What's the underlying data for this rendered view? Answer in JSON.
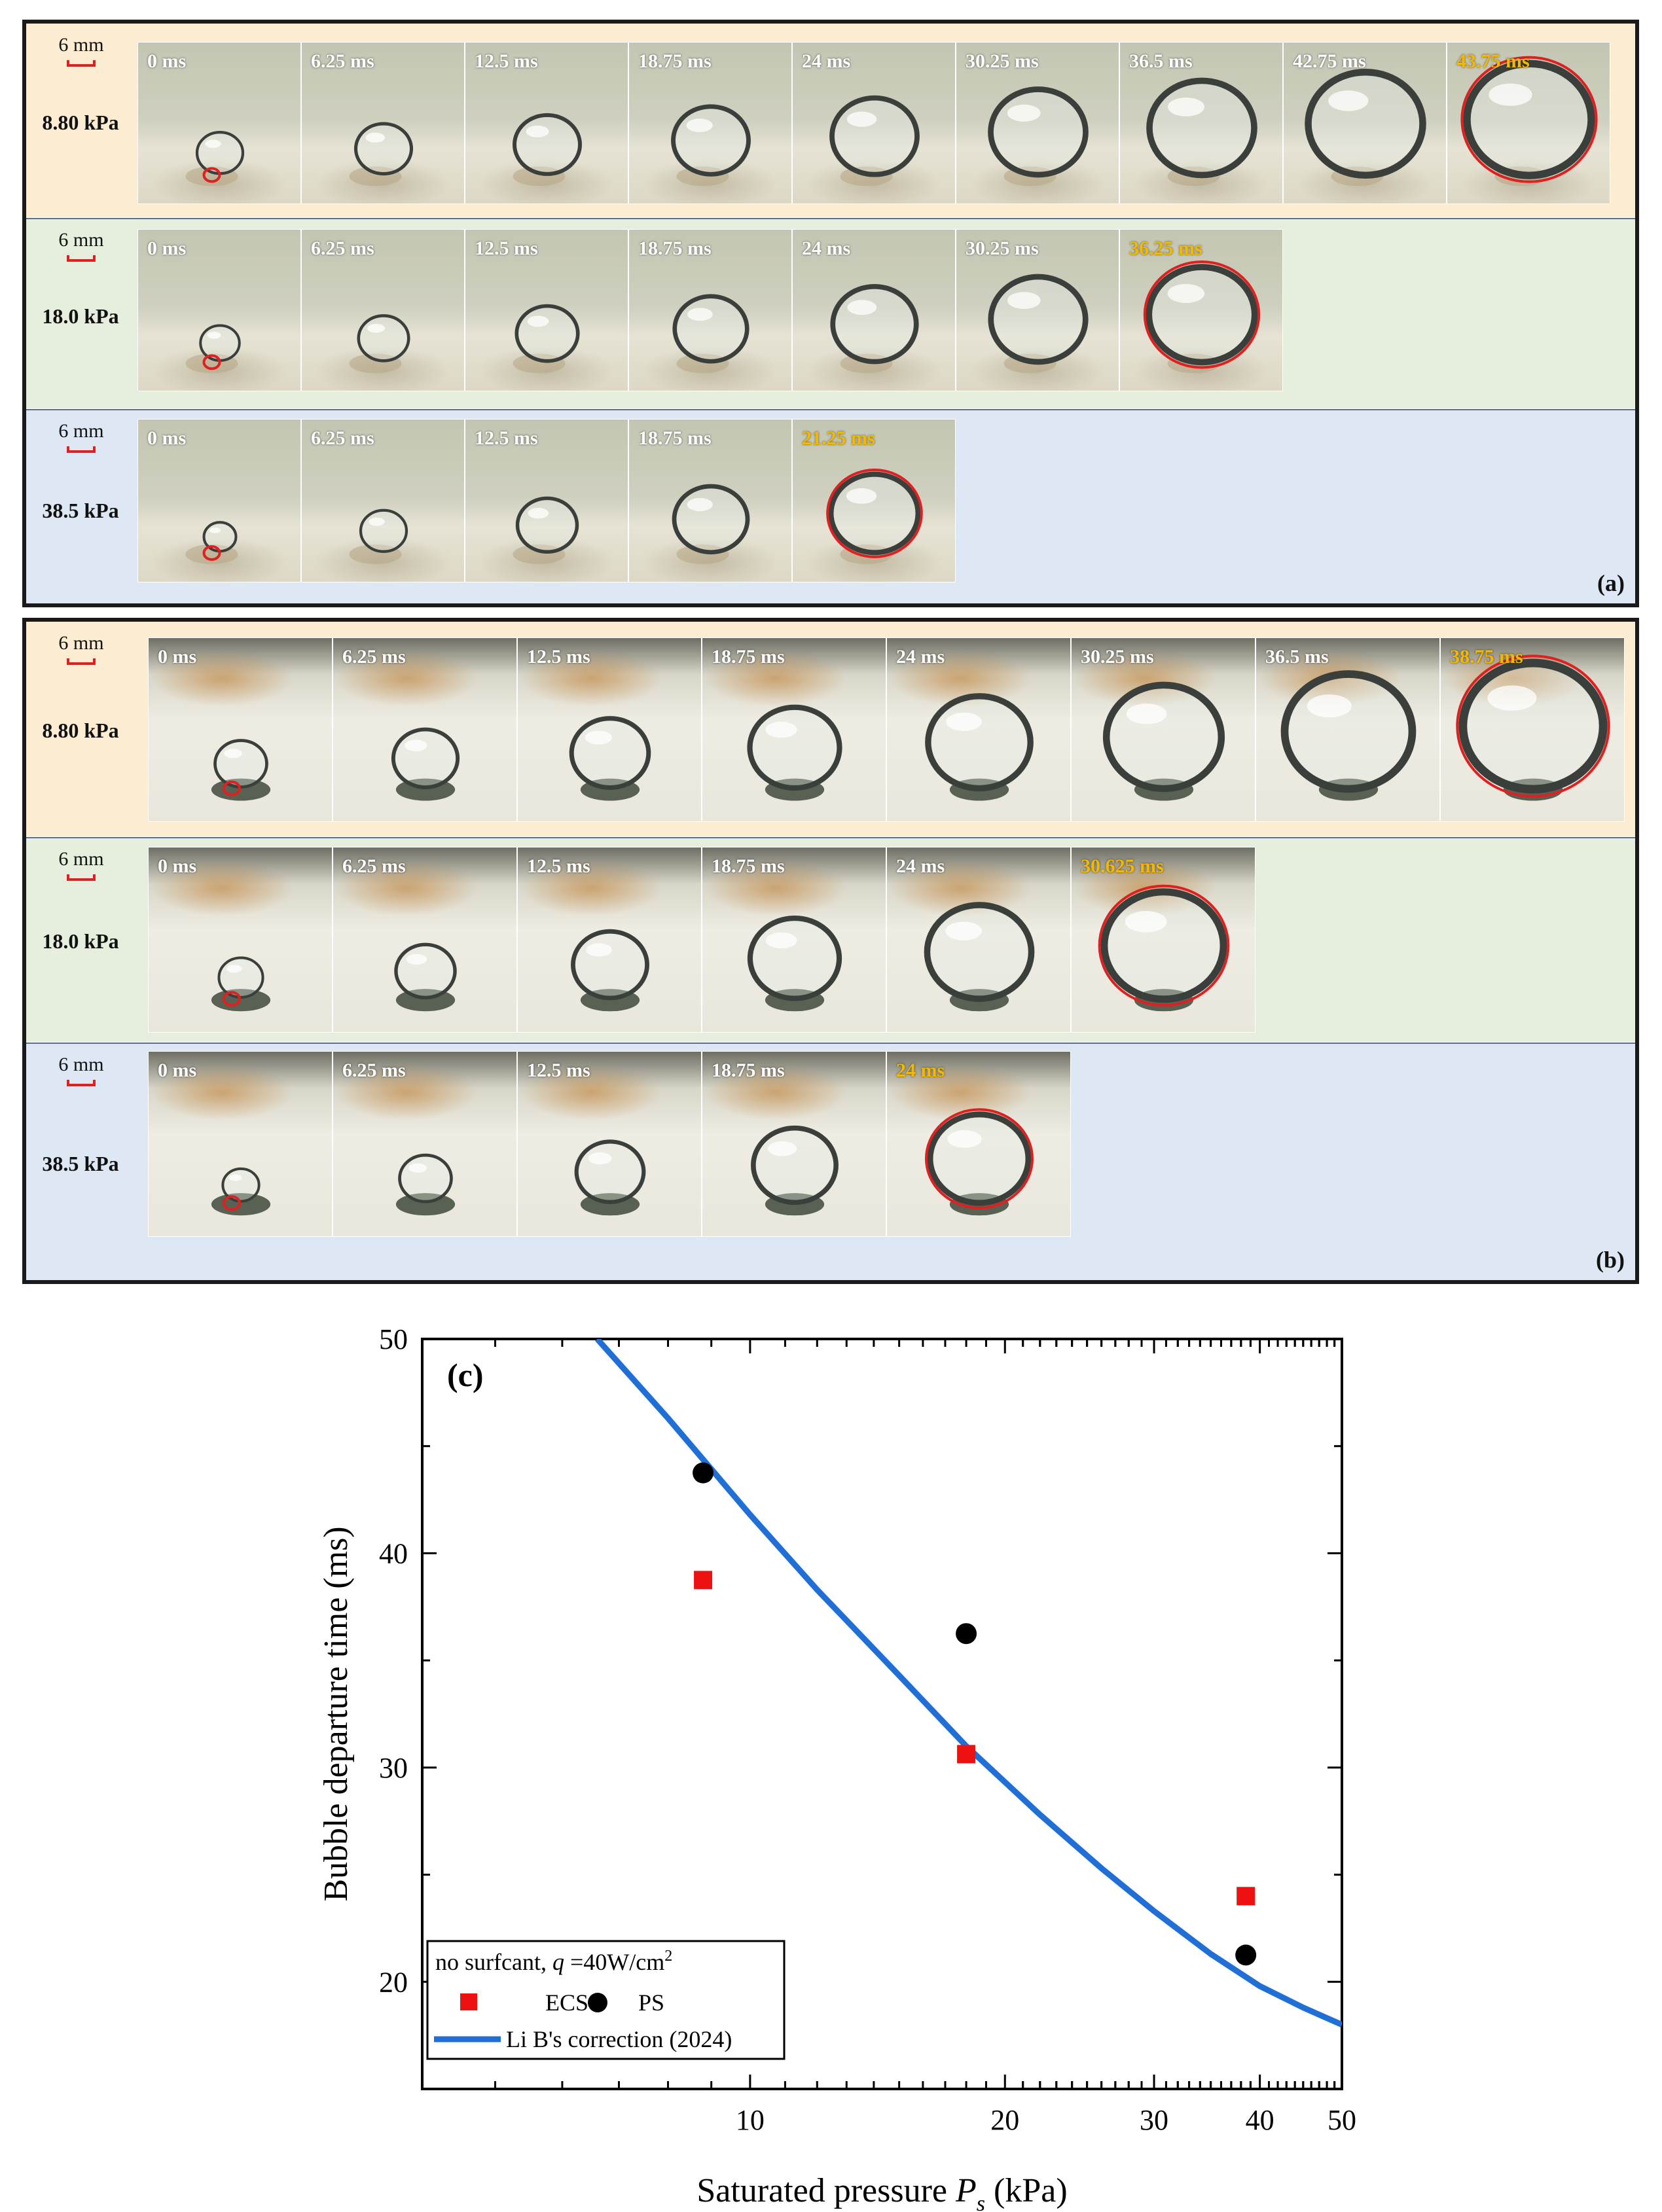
{
  "panel_a": {
    "tag": "(a)",
    "scale_label": "6 mm",
    "rows": [
      {
        "pressure": "8.80 kPa",
        "times": [
          "0 ms",
          "6.25 ms",
          "12.5 ms",
          "18.75 ms",
          "24 ms",
          "30.25 ms",
          "36.5 ms",
          "42.75 ms",
          "43.75 ms"
        ]
      },
      {
        "pressure": "18.0 kPa",
        "times": [
          "0 ms",
          "6.25 ms",
          "12.5 ms",
          "18.75 ms",
          "24 ms",
          "30.25 ms",
          "36.25 ms"
        ]
      },
      {
        "pressure": "38.5 kPa",
        "times": [
          "0 ms",
          "6.25 ms",
          "12.5 ms",
          "18.75 ms",
          "21.25 ms"
        ]
      }
    ]
  },
  "panel_b": {
    "tag": "(b)",
    "scale_label": "6 mm",
    "rows": [
      {
        "pressure": "8.80 kPa",
        "times": [
          "0 ms",
          "6.25 ms",
          "12.5 ms",
          "18.75 ms",
          "24 ms",
          "30.25 ms",
          "36.5 ms",
          "38.75 ms"
        ]
      },
      {
        "pressure": "18.0 kPa",
        "times": [
          "0 ms",
          "6.25 ms",
          "12.5 ms",
          "18.75 ms",
          "24 ms",
          "30.625 ms"
        ]
      },
      {
        "pressure": "38.5 kPa",
        "times": [
          "0 ms",
          "6.25 ms",
          "12.5 ms",
          "18.75 ms",
          "24 ms"
        ]
      }
    ]
  },
  "colors": {
    "ecs": "#ee1111",
    "ps": "#000000",
    "fit": "#1f6fd6",
    "highlight": "#f5b800",
    "annotation": "#e02020"
  },
  "chart_data": {
    "type": "scatter",
    "panel_tag": "(c)",
    "xlabel": "Saturated pressure",
    "xlabel_symbol": "P",
    "xlabel_sub": "s",
    "xlabel_unit": "(kPa)",
    "ylabel": "Bubble departure time (ms)",
    "x_scale": "log",
    "xlim": [
      4.1,
      50
    ],
    "ylim": [
      15,
      50
    ],
    "x_ticks": [
      10,
      20,
      30,
      40,
      50
    ],
    "y_ticks": [
      20,
      30,
      40,
      50
    ],
    "series": [
      {
        "name": "ECS",
        "marker": "square",
        "x": [
          8.8,
          18.0,
          38.5
        ],
        "y": [
          38.75,
          30.625,
          24.0
        ]
      },
      {
        "name": "PS",
        "marker": "circle",
        "x": [
          8.8,
          18.0,
          38.5
        ],
        "y": [
          43.75,
          36.25,
          21.25
        ]
      }
    ],
    "fit": {
      "name": "Li B's correction (2024)",
      "x": [
        6.6,
        8,
        10,
        12,
        15,
        18,
        22,
        26,
        30,
        35,
        40,
        45,
        50
      ],
      "y": [
        50,
        46.3,
        41.8,
        38.3,
        34.3,
        31.0,
        27.8,
        25.3,
        23.3,
        21.3,
        19.8,
        18.8,
        18.0
      ]
    },
    "legend": {
      "position": "bottom-left",
      "header_text": "no surfcant, ",
      "header_var": "q",
      "header_value": " =40W/cm",
      "header_exp": "2"
    }
  }
}
